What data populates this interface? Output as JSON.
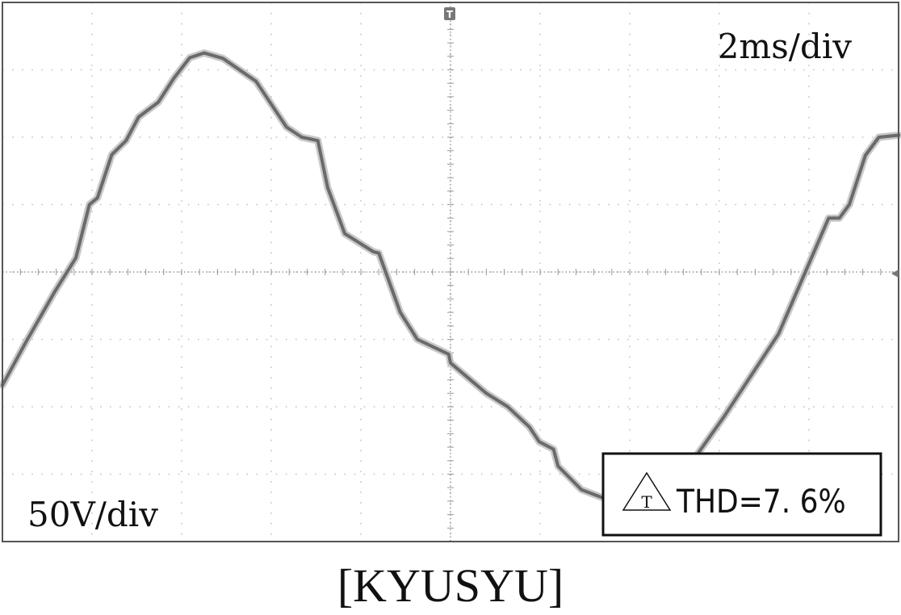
{
  "chart_data": {
    "type": "line",
    "title": "",
    "time_scale": "2ms/div",
    "voltage_scale": "50V/div",
    "thd_label": "THD=7. 6%",
    "trigger_marker": "T",
    "caption": "[KYUSYU]",
    "grid": true,
    "divisions": {
      "x": 10,
      "y": 8
    },
    "x_unit": "div",
    "y_unit": "div",
    "xlim": [
      0,
      10
    ],
    "ylim": [
      -4,
      4
    ],
    "series": [
      {
        "x": [
          0.0,
          0.27,
          0.58,
          0.82,
          0.97,
          1.06,
          1.22,
          1.38,
          1.52,
          1.74,
          1.91,
          2.09,
          2.25,
          2.46,
          2.83,
          3.17,
          3.34,
          3.52,
          3.63,
          3.82,
          4.14,
          4.2,
          4.44,
          4.63,
          4.98,
          5.0,
          5.4,
          5.64,
          5.88,
          5.99,
          6.15,
          6.2,
          6.46,
          6.72,
          7.02,
          7.27,
          7.57,
          8.05,
          8.66,
          9.22,
          9.34,
          9.45,
          9.63,
          9.78,
          10.0
        ],
        "y": [
          -1.68,
          -1.02,
          -0.3,
          0.21,
          1.0,
          1.1,
          1.74,
          1.95,
          2.3,
          2.52,
          2.87,
          3.18,
          3.25,
          3.17,
          2.83,
          2.15,
          2.0,
          1.95,
          1.25,
          0.57,
          0.3,
          0.28,
          -0.6,
          -1.0,
          -1.22,
          -1.35,
          -1.8,
          -2.0,
          -2.3,
          -2.52,
          -2.63,
          -2.88,
          -3.23,
          -3.36,
          -3.58,
          -3.5,
          -3.05,
          -2.15,
          -0.92,
          0.8,
          0.8,
          1.0,
          1.73,
          2.0,
          2.03
        ]
      }
    ]
  }
}
